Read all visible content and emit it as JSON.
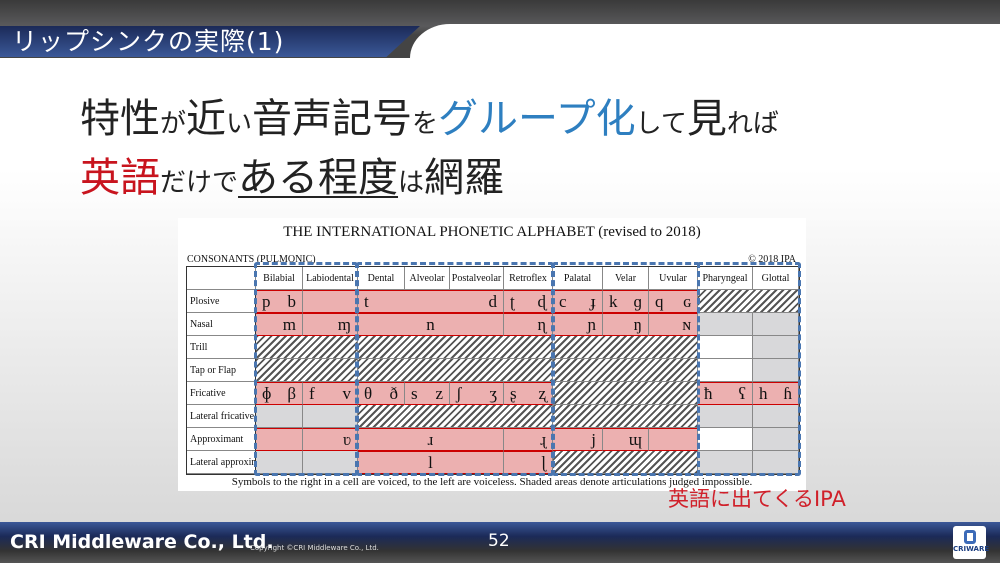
{
  "slide": {
    "title": "リップシンクの実際(1)",
    "page_number": "52",
    "company": "CRI Middleware Co., Ltd.",
    "copyright": "Copyright ©CRI Middleware Co., Ltd.",
    "logo_text": "CRIWARE"
  },
  "heading": {
    "line1": [
      {
        "t": "特性",
        "c": ""
      },
      {
        "t": "が",
        "c": "sm"
      },
      {
        "t": "近",
        "c": ""
      },
      {
        "t": "い",
        "c": "sm"
      },
      {
        "t": "音声記号",
        "c": ""
      },
      {
        "t": "を",
        "c": "sm"
      },
      {
        "t": "グループ化",
        "c": "blue"
      },
      {
        "t": "して",
        "c": "sm"
      },
      {
        "t": "見",
        "c": ""
      },
      {
        "t": "れば",
        "c": "sm"
      }
    ],
    "line2": [
      {
        "t": "英語",
        "c": "red"
      },
      {
        "t": "だけで",
        "c": "sm"
      },
      {
        "t": "ある程度",
        "c": "ul"
      },
      {
        "t": "は",
        "c": "sm"
      },
      {
        "t": "網羅",
        "c": ""
      }
    ]
  },
  "ipa": {
    "title": "THE INTERNATIONAL PHONETIC ALPHABET (revised to 2018)",
    "subtitle": "CONSONANTS (PULMONIC)",
    "copyright": "© 2018 IPA",
    "columns": [
      "Bilabial",
      "Labiodental",
      "Dental",
      "Alveolar",
      "Postalveolar",
      "Retroflex",
      "Palatal",
      "Velar",
      "Uvular",
      "Pharyngeal",
      "Glottal"
    ],
    "rows": [
      {
        "label": "Plosive",
        "cells": [
          {
            "t": "p",
            "v": "p b"
          },
          {
            "t": "p",
            "v": ""
          },
          {
            "t": "p",
            "v": "t d",
            "s": 3
          },
          {
            "t": "p",
            "v": "ʈ ɖ"
          },
          {
            "t": "p",
            "v": "c ɟ"
          },
          {
            "t": "p",
            "v": "k ɡ"
          },
          {
            "t": "p",
            "v": "q ɢ"
          },
          {
            "t": "h",
            "s": 2
          }
        ]
      },
      {
        "label": "Nasal",
        "cells": [
          {
            "t": "p",
            "v": "m"
          },
          {
            "t": "p",
            "v": "ɱ"
          },
          {
            "t": "p",
            "v": "n",
            "s": 3
          },
          {
            "t": "p",
            "v": "ɳ"
          },
          {
            "t": "p",
            "v": "ɲ"
          },
          {
            "t": "p",
            "v": "ŋ"
          },
          {
            "t": "p",
            "v": "ɴ"
          },
          {
            "t": "g"
          },
          {
            "t": "g"
          }
        ]
      },
      {
        "label": "Trill",
        "cells": [
          {
            "t": "h",
            "s": 2
          },
          {
            "t": "h",
            "s": 4
          },
          {
            "t": "h",
            "s": 3
          },
          {
            "t": "w"
          },
          {
            "t": "g"
          }
        ]
      },
      {
        "label": "Tap or Flap",
        "cells": [
          {
            "t": "h",
            "s": 2
          },
          {
            "t": "h",
            "s": 4
          },
          {
            "t": "h",
            "s": 3
          },
          {
            "t": "w"
          },
          {
            "t": "g"
          }
        ]
      },
      {
        "label": "Fricative",
        "cells": [
          {
            "t": "p",
            "v": "ɸ β"
          },
          {
            "t": "p",
            "v": "f v"
          },
          {
            "t": "p",
            "v": "θ ð"
          },
          {
            "t": "p",
            "v": "s z"
          },
          {
            "t": "p",
            "v": "ʃ ʒ"
          },
          {
            "t": "p",
            "v": "ʂ ʐ"
          },
          {
            "t": "h",
            "s": 3
          },
          {
            "t": "p",
            "v": "ħ ʕ"
          },
          {
            "t": "p",
            "v": "h ɦ"
          }
        ]
      },
      {
        "label": "Lateral fricative",
        "cells": [
          {
            "t": "g"
          },
          {
            "t": "g"
          },
          {
            "t": "h",
            "s": 4
          },
          {
            "t": "h",
            "s": 3
          },
          {
            "t": "g"
          },
          {
            "t": "g"
          }
        ]
      },
      {
        "label": "Approximant",
        "cells": [
          {
            "t": "p",
            "v": ""
          },
          {
            "t": "p",
            "v": "ʋ"
          },
          {
            "t": "p",
            "v": "ɹ",
            "s": 3
          },
          {
            "t": "p",
            "v": "ɻ"
          },
          {
            "t": "p",
            "v": "j"
          },
          {
            "t": "p",
            "v": "ɰ"
          },
          {
            "t": "p",
            "v": ""
          },
          {
            "t": "w"
          },
          {
            "t": "g"
          }
        ]
      },
      {
        "label": "Lateral approximant",
        "cells": [
          {
            "t": "g"
          },
          {
            "t": "g"
          },
          {
            "t": "p",
            "v": "l",
            "s": 3
          },
          {
            "t": "p",
            "v": "ɭ"
          },
          {
            "t": "h",
            "s": 3
          },
          {
            "t": "g"
          },
          {
            "t": "g"
          }
        ]
      }
    ],
    "note": "Symbols to the right in a cell are voiced, to the left are voiceless. Shaded areas denote articulations judged impossible."
  },
  "annotation": "英語に出てくるIPA",
  "colors": {
    "highlight": "#ecb0b0",
    "accent_blue": "#2e7fc0",
    "accent_red": "#c8141e",
    "group_border": "#4a76b0"
  }
}
